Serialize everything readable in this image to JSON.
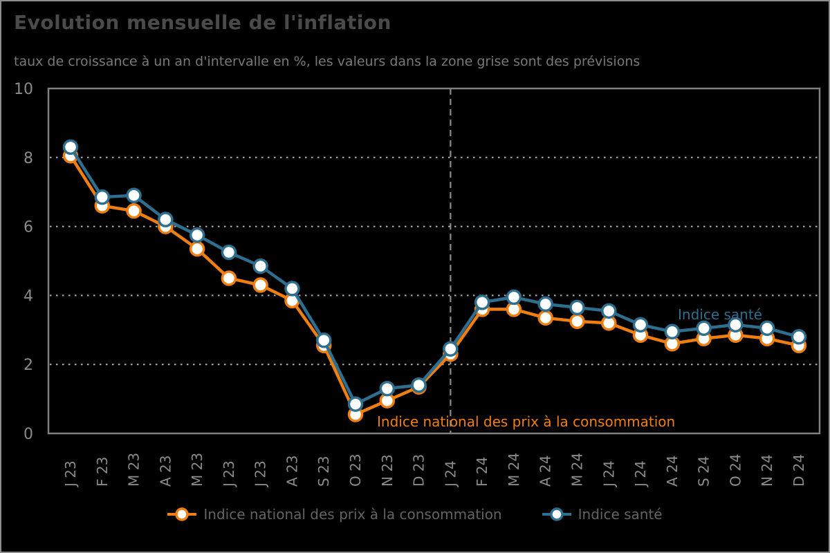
{
  "header": {
    "title": "Evolution mensuelle de l'inflation",
    "subtitle": "taux de croissance à un an d'intervalle en %, les valeurs dans la zone grise sont des prévisions"
  },
  "colors": {
    "background": "#000000",
    "outer_border": "#8c8c8c",
    "frame": "#808080",
    "gridline": "#b3b3b3",
    "forecast_divider": "#8c8c8c",
    "title": "#4a4a4a",
    "subtitle": "#787878",
    "tick_label": "#8a8a8a",
    "legend_text": "#636363",
    "cpi_orange": "#f07f12",
    "sante_teal": "#2e6f8f"
  },
  "chart_data": {
    "type": "line",
    "title": "Evolution mensuelle de l'inflation",
    "subtitle": "taux de croissance à un an d'intervalle en %, les valeurs dans la zone grise sont des prévisions",
    "categories": [
      "J 23",
      "F 23",
      "M 23",
      "A 23",
      "M 23",
      "J 23",
      "J 23",
      "A 23",
      "S 23",
      "O 23",
      "N 23",
      "D 23",
      "J 24",
      "F 24",
      "M 24",
      "A 24",
      "M 24",
      "J 24",
      "J 24",
      "A 24",
      "S 24",
      "O 24",
      "N 24",
      "D 24"
    ],
    "series": [
      {
        "name": "Indice national des prix à la consommation",
        "color": "#f07f12",
        "values": [
          8.05,
          6.6,
          6.45,
          6.0,
          5.35,
          4.5,
          4.3,
          3.85,
          2.55,
          0.55,
          0.95,
          1.35,
          2.3,
          3.6,
          3.6,
          3.35,
          3.25,
          3.2,
          2.85,
          2.6,
          2.75,
          2.85,
          2.75,
          2.55
        ]
      },
      {
        "name": "Indice santé",
        "color": "#2e6f8f",
        "values": [
          8.3,
          6.85,
          6.9,
          6.2,
          5.75,
          5.25,
          4.85,
          4.2,
          2.7,
          0.85,
          1.3,
          1.4,
          2.45,
          3.8,
          3.95,
          3.75,
          3.65,
          3.55,
          3.15,
          2.95,
          3.05,
          3.15,
          3.05,
          2.8
        ]
      }
    ],
    "ylim": [
      0,
      10
    ],
    "yticks": [
      0,
      2,
      4,
      6,
      8,
      10
    ],
    "grid": "horizontal dotted lines at 2, 4, 6, 8",
    "legend_position": "bottom center",
    "forecast_divider": {
      "category": "J 24",
      "index": 12,
      "style": "vertical dashed gray line"
    },
    "annotations": [
      {
        "text": "Indice national des prix à la consommation",
        "series": "cpi"
      },
      {
        "text": "Indice santé",
        "series": "sante"
      }
    ]
  }
}
